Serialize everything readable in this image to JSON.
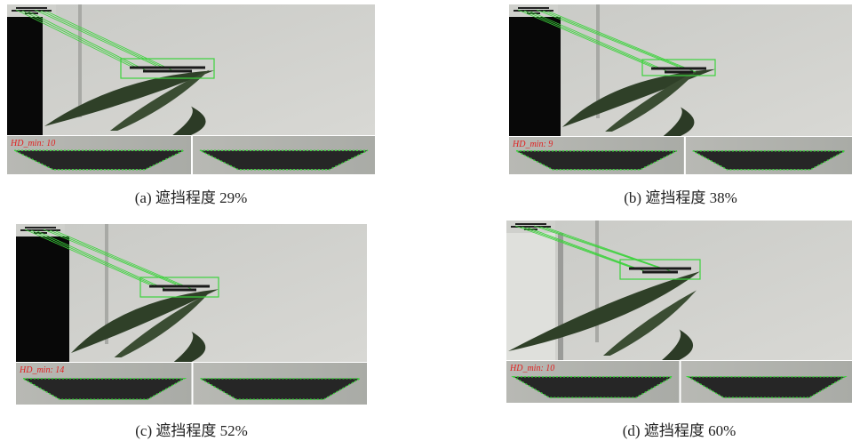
{
  "panels": [
    {
      "caption": "(a) 遮挡程度 29%",
      "overlay": "HD_min: 10"
    },
    {
      "caption": "(b) 遮挡程度 38%",
      "overlay": "HD_min: 9"
    },
    {
      "caption": "(c) 遮挡程度 52%",
      "overlay": "HD_min: 14"
    },
    {
      "caption": "(d) 遮挡程度 60%",
      "overlay": "HD_min: 10"
    }
  ]
}
